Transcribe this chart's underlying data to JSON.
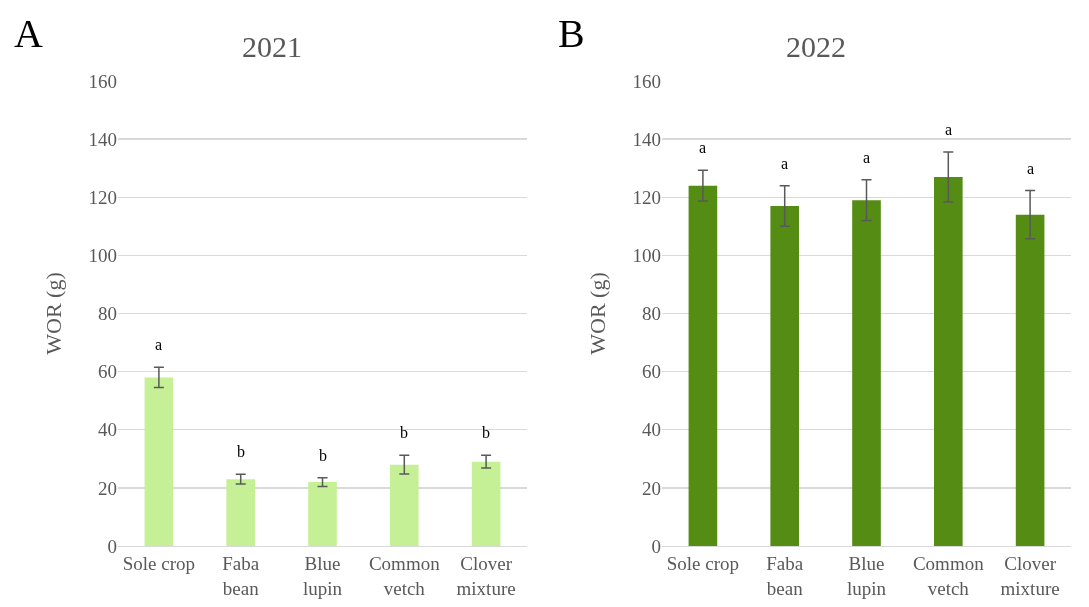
{
  "chart_data": [
    {
      "type": "bar",
      "title": "2021",
      "ylabel": "WOR (g)",
      "categories": [
        "Sole crop",
        "Faba\nbean",
        "Blue\nlupin",
        "Common\nvetch",
        "Clover\nmixture"
      ],
      "values": [
        58,
        23,
        22,
        28,
        29
      ],
      "errors": [
        3.5,
        1.7,
        1.5,
        3.2,
        2.2
      ],
      "color": "#c6f096",
      "ylim": [
        0,
        160
      ],
      "yticks": [
        0,
        20,
        40,
        60,
        80,
        100,
        120,
        140,
        160
      ],
      "grid": "y",
      "annotations": [
        "A",
        "a",
        "b",
        "b",
        "b",
        "b"
      ]
    },
    {
      "type": "bar",
      "title": "2022",
      "ylabel": "WOR (g)",
      "categories": [
        "Sole crop",
        "Faba\nbean",
        "Blue\nlupin",
        "Common\nvetch",
        "Clover\nmixture"
      ],
      "values": [
        124,
        117,
        119,
        127,
        114
      ],
      "errors": [
        5.3,
        7,
        7,
        8.6,
        8.3
      ],
      "color": "#548c14",
      "ylim": [
        0,
        160
      ],
      "yticks": [
        0,
        20,
        40,
        60,
        80,
        100,
        120,
        140,
        160
      ],
      "grid": "y",
      "annotations": [
        "B",
        "a",
        "a",
        "a",
        "a",
        "a"
      ]
    }
  ]
}
